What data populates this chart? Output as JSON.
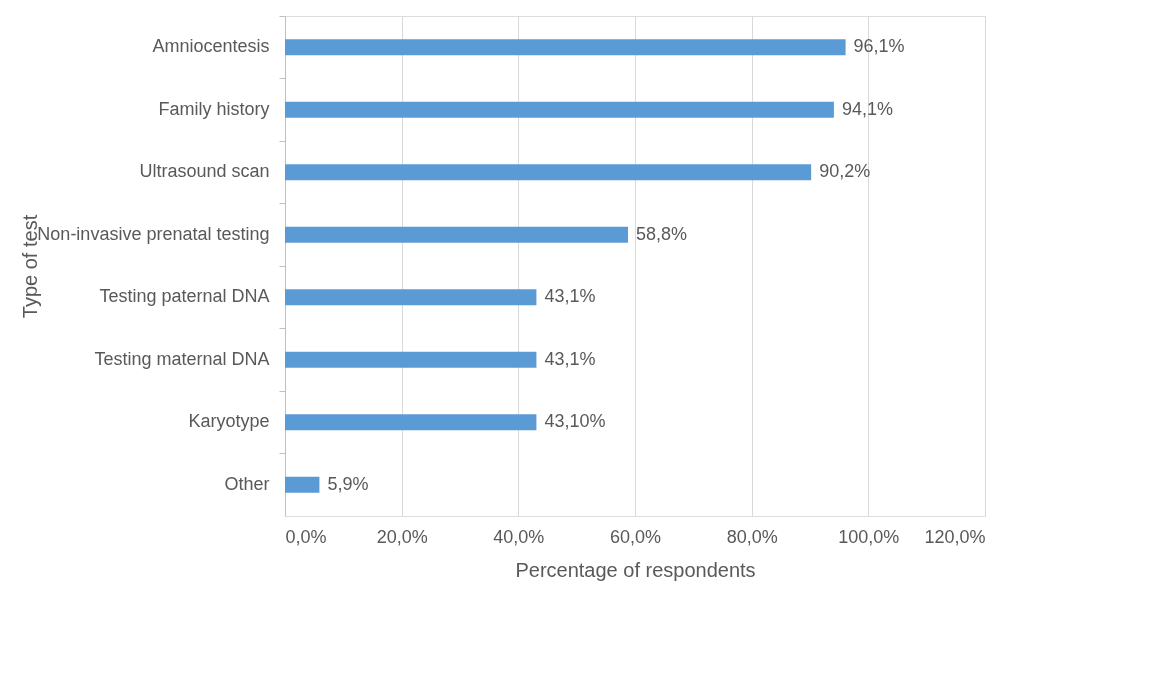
{
  "chart_data": {
    "type": "bar",
    "orientation": "horizontal",
    "xlabel": "Percentage of respondents",
    "ylabel": "Type of test",
    "categories": [
      "Amniocentesis",
      "Family history",
      "Ultrasound scan",
      "Non-invasive prenatal testing",
      "Testing paternal DNA",
      "Testing maternal DNA",
      "Karyotype",
      "Other"
    ],
    "values": [
      96.1,
      94.1,
      90.2,
      58.8,
      43.1,
      43.1,
      43.1,
      5.9
    ],
    "value_labels": [
      "96,1%",
      "94,1%",
      "90,2%",
      "58,8%",
      "43,1%",
      "43,1%",
      "43,10%",
      "5,9%"
    ],
    "color": "#5b9bd5",
    "xlim": [
      0,
      120
    ],
    "xticks": [
      {
        "value": 0,
        "label": "0,0%"
      },
      {
        "value": 20,
        "label": "20,0%"
      },
      {
        "value": 40,
        "label": "40,0%"
      },
      {
        "value": 60,
        "label": "60,0%"
      },
      {
        "value": 80,
        "label": "80,0%"
      },
      {
        "value": 100,
        "label": "100,0%"
      },
      {
        "value": 120,
        "label": "120,0%"
      }
    ],
    "grid": "x"
  }
}
